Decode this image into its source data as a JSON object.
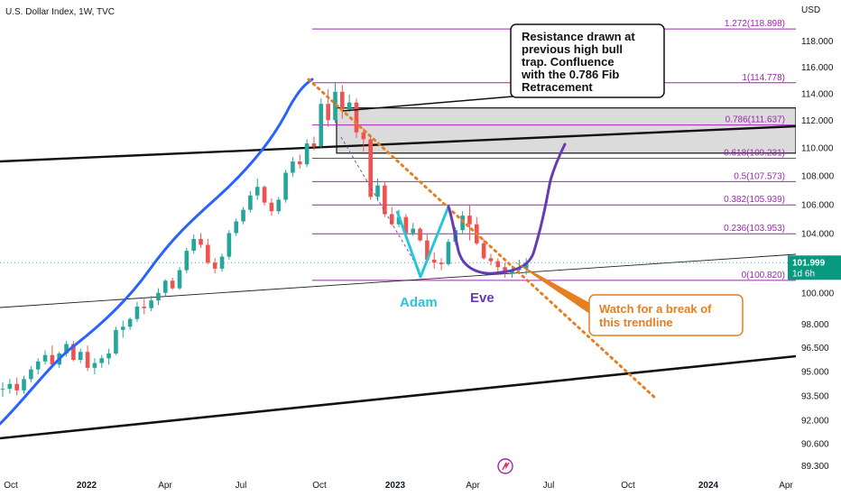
{
  "header": {
    "title": "U.S. Dollar Index, 1W, TVC"
  },
  "currency": "USD",
  "price_badge": {
    "price": "101.999",
    "countdown": "1d 6h",
    "color": "#089981"
  },
  "colors": {
    "up": "#26a69a",
    "down": "#ef5350",
    "ma": "#2962ff",
    "fib": "#9c27b0",
    "trend": "#e67e22",
    "eve": "#673ab7",
    "adam": "#26c6da"
  },
  "chart_data": {
    "type": "candlestick",
    "title": "U.S. Dollar Index, 1W, TVC",
    "x_ticks": [
      "Oct",
      "2022",
      "Apr",
      "Jul",
      "Oct",
      "2023",
      "Apr",
      "Jul",
      "Oct",
      "2024",
      "Apr"
    ],
    "y_ticks": [
      "118.000",
      "116.000",
      "114.000",
      "112.000",
      "110.000",
      "108.000",
      "106.000",
      "104.000",
      "102.000",
      "100.000",
      "98.000",
      "96.500",
      "95.000",
      "93.500",
      "92.000",
      "90.600",
      "89.300"
    ],
    "candles": [
      [
        93.9,
        94.3,
        93.4,
        93.9
      ],
      [
        93.9,
        94.5,
        93.6,
        94.2
      ],
      [
        94.2,
        94.6,
        93.5,
        93.8
      ],
      [
        93.8,
        94.7,
        93.6,
        94.5
      ],
      [
        94.5,
        95.3,
        94.3,
        95.1
      ],
      [
        95.1,
        95.8,
        94.8,
        95.6
      ],
      [
        95.6,
        96.3,
        95.4,
        96.0
      ],
      [
        96.0,
        96.6,
        95.2,
        95.4
      ],
      [
        95.4,
        96.2,
        95.2,
        96.1
      ],
      [
        96.1,
        96.9,
        95.9,
        96.7
      ],
      [
        96.7,
        96.9,
        95.6,
        95.7
      ],
      [
        95.7,
        96.4,
        95.5,
        96.2
      ],
      [
        96.2,
        96.6,
        95.0,
        95.2
      ],
      [
        95.2,
        95.8,
        94.8,
        95.5
      ],
      [
        95.5,
        96.0,
        95.2,
        95.8
      ],
      [
        95.8,
        96.4,
        95.4,
        96.1
      ],
      [
        96.1,
        97.8,
        96.0,
        97.6
      ],
      [
        97.6,
        98.2,
        97.1,
        97.8
      ],
      [
        97.8,
        98.4,
        97.6,
        98.3
      ],
      [
        98.3,
        99.4,
        98.1,
        99.1
      ],
      [
        99.1,
        99.6,
        98.6,
        99.0
      ],
      [
        99.0,
        99.8,
        98.8,
        99.5
      ],
      [
        99.5,
        100.3,
        99.2,
        100.0
      ],
      [
        100.0,
        100.9,
        99.8,
        100.8
      ],
      [
        100.8,
        101.0,
        100.2,
        100.3
      ],
      [
        100.3,
        101.7,
        100.2,
        101.5
      ],
      [
        101.5,
        103.0,
        101.3,
        102.8
      ],
      [
        102.8,
        103.9,
        102.6,
        103.6
      ],
      [
        103.6,
        104.0,
        103.0,
        103.2
      ],
      [
        103.2,
        103.6,
        101.9,
        102.0
      ],
      [
        102.0,
        102.3,
        101.3,
        101.6
      ],
      [
        101.6,
        102.6,
        101.4,
        102.4
      ],
      [
        102.4,
        104.2,
        102.2,
        104.0
      ],
      [
        104.0,
        105.0,
        103.8,
        104.8
      ],
      [
        104.8,
        105.8,
        104.6,
        105.6
      ],
      [
        105.6,
        106.9,
        105.4,
        106.6
      ],
      [
        106.6,
        107.8,
        106.3,
        107.2
      ],
      [
        107.2,
        107.3,
        105.9,
        106.1
      ],
      [
        106.1,
        106.4,
        105.2,
        105.5
      ],
      [
        105.5,
        106.5,
        105.3,
        106.3
      ],
      [
        106.3,
        108.4,
        106.1,
        108.2
      ],
      [
        108.2,
        109.3,
        107.9,
        109.0
      ],
      [
        109.0,
        109.5,
        108.5,
        108.8
      ],
      [
        108.8,
        110.6,
        108.6,
        110.3
      ],
      [
        110.3,
        110.8,
        109.8,
        110.1
      ],
      [
        110.1,
        113.6,
        110.0,
        113.2
      ],
      [
        113.2,
        114.3,
        111.5,
        112.0
      ],
      [
        112.0,
        114.8,
        111.8,
        114.1
      ],
      [
        114.1,
        114.6,
        112.1,
        112.8
      ],
      [
        112.8,
        113.9,
        112.6,
        113.3
      ],
      [
        113.3,
        113.6,
        110.7,
        111.1
      ],
      [
        111.1,
        111.4,
        109.7,
        110.6
      ],
      [
        110.6,
        110.8,
        106.3,
        106.5
      ],
      [
        106.5,
        107.8,
        106.2,
        107.3
      ],
      [
        107.3,
        107.6,
        105.1,
        105.3
      ],
      [
        105.3,
        105.8,
        104.5,
        104.6
      ],
      [
        104.6,
        105.6,
        104.4,
        105.1
      ],
      [
        105.1,
        105.3,
        103.8,
        104.0
      ],
      [
        104.0,
        104.7,
        103.8,
        104.3
      ],
      [
        104.3,
        104.4,
        103.4,
        103.5
      ],
      [
        103.5,
        103.9,
        102.0,
        102.2
      ],
      [
        102.2,
        102.7,
        101.6,
        102.0
      ],
      [
        102.0,
        102.3,
        101.5,
        101.9
      ],
      [
        101.9,
        103.6,
        101.8,
        103.4
      ],
      [
        103.4,
        104.4,
        103.2,
        104.2
      ],
      [
        104.2,
        105.5,
        104.0,
        105.2
      ],
      [
        105.2,
        105.9,
        103.5,
        104.6
      ],
      [
        104.6,
        105.1,
        103.2,
        103.3
      ],
      [
        103.3,
        103.6,
        102.2,
        102.3
      ],
      [
        102.3,
        102.6,
        101.8,
        102.1
      ],
      [
        102.1,
        102.3,
        101.3,
        101.7
      ],
      [
        101.7,
        102.0,
        101.0,
        101.3
      ],
      [
        101.3,
        101.8,
        101.0,
        101.5
      ],
      [
        101.5,
        102.2,
        101.3,
        101.6
      ],
      [
        101.6,
        102.3,
        101.2,
        101.99
      ]
    ],
    "fib_levels": [
      {
        "ratio": "0",
        "value": 100.82,
        "label": "0(100.820)"
      },
      {
        "ratio": "0.236",
        "value": 103.953,
        "label": "0.236(103.953)"
      },
      {
        "ratio": "0.382",
        "value": 105.939,
        "label": "0.382(105.939)"
      },
      {
        "ratio": "0.5",
        "value": 107.573,
        "label": "0.5(107.573)"
      },
      {
        "ratio": "0.618",
        "value": 109.231,
        "label": "0.618(109.231)"
      },
      {
        "ratio": "0.786",
        "value": 111.637,
        "label": "0.786(111.637)"
      },
      {
        "ratio": "1",
        "value": 114.778,
        "label": "1(114.778)"
      },
      {
        "ratio": "1.272",
        "value": 118.898,
        "label": "1.272(118.898)"
      }
    ],
    "resistance_zone": [
      109.6,
      112.9
    ],
    "annotations": {
      "resistance_note": [
        "Resistance drawn at",
        "previous high bull",
        "trap.  Confluence",
        "with the 0.786 Fib",
        "Retracement"
      ],
      "watch_note": [
        "Watch for a break of",
        "this trendline"
      ],
      "adam": "Adam",
      "eve": "Eve"
    },
    "y_scale": "log",
    "ylim": [
      89.3,
      120.4
    ],
    "grid": false,
    "legend": "none"
  }
}
